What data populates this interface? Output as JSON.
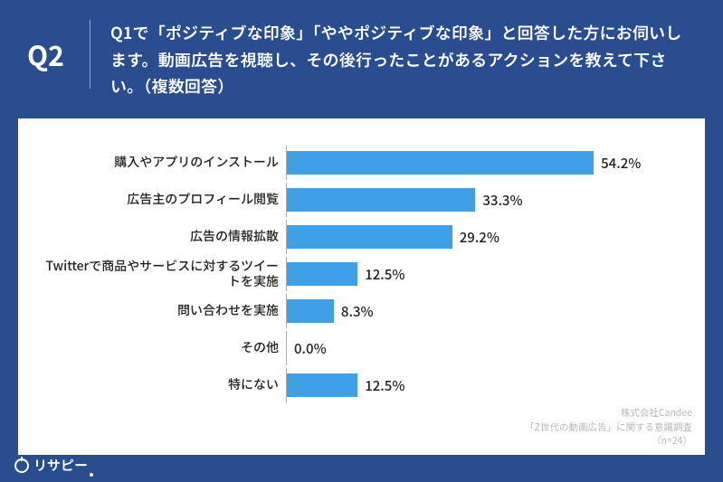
{
  "header": {
    "label": "Q2",
    "text": "Q1で「ポジティブな印象」「ややポジティブな印象」と回答した方にお伺いします。動画広告を視聴し、その後行ったことがあるアクションを教えて下さい。（複数回答）"
  },
  "chart": {
    "type": "bar-horizontal",
    "x_max_percent": 70,
    "bar_color": "#3fa0e8",
    "axis_color": "#aaaaaa",
    "label_fontsize": 14,
    "value_fontsize": 15,
    "background_color": "#ffffff",
    "items": [
      {
        "label": "購入やアプリのインストール",
        "value": 54.2,
        "display": "54.2%"
      },
      {
        "label": "広告主のプロフィール閲覧",
        "value": 33.3,
        "display": "33.3%"
      },
      {
        "label": "広告の情報拡散",
        "value": 29.2,
        "display": "29.2%"
      },
      {
        "label": "Twitterで商品やサービスに対するツイートを実施",
        "value": 12.5,
        "display": "12.5%"
      },
      {
        "label": "問い合わせを実施",
        "value": 8.3,
        "display": "8.3%"
      },
      {
        "label": "その他",
        "value": 0.0,
        "display": "0.0%"
      },
      {
        "label": "特にない",
        "value": 12.5,
        "display": "12.5%"
      }
    ]
  },
  "credits": {
    "line1": "株式会社Candee",
    "line2": "「Z世代の動画広告」に関する意識調査",
    "line3": "（n=24）"
  },
  "footer": {
    "brand": "リサピー"
  },
  "page_bg": "#2a4d8f"
}
